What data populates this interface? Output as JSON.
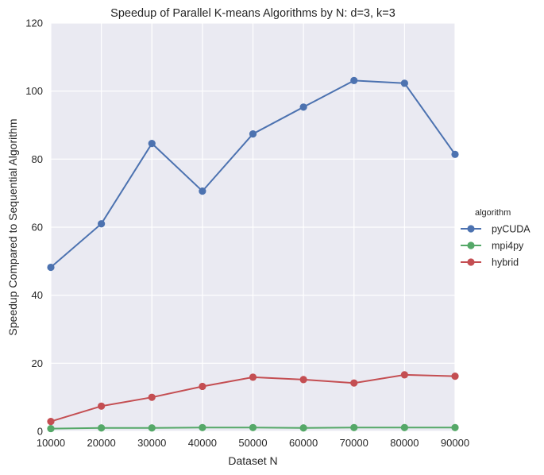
{
  "chart_data": {
    "type": "line",
    "title": "Speedup of Parallel K-means Algorithms by N: d=3, k=3",
    "xlabel": "Dataset N",
    "ylabel": "Speedup Compared to Sequential Algorithm",
    "x": [
      10000,
      20000,
      30000,
      40000,
      50000,
      60000,
      70000,
      80000,
      90000
    ],
    "x_tick_labels": [
      "10000",
      "20000",
      "30000",
      "40000",
      "50000",
      "60000",
      "70000",
      "80000",
      "90000"
    ],
    "y_ticks": [
      0,
      20,
      40,
      60,
      80,
      100,
      120
    ],
    "y_tick_labels": [
      "0",
      "20",
      "40",
      "60",
      "80",
      "100",
      "120"
    ],
    "xlim": [
      10000,
      90000
    ],
    "ylim": [
      0,
      120
    ],
    "grid": true,
    "legend_title": "algorithm",
    "legend_position": "right",
    "series": [
      {
        "name": "pyCUDA",
        "color": "#4c72b0",
        "values": [
          48.2,
          61.0,
          84.6,
          70.6,
          87.4,
          95.3,
          103.1,
          102.3,
          81.4
        ]
      },
      {
        "name": "mpi4py",
        "color": "#55a868",
        "values": [
          0.8,
          1.0,
          1.0,
          1.1,
          1.1,
          1.0,
          1.1,
          1.1,
          1.1
        ]
      },
      {
        "name": "hybrid",
        "color": "#c44e52",
        "values": [
          2.9,
          7.4,
          10.0,
          13.2,
          15.9,
          15.2,
          14.2,
          16.6,
          16.2
        ]
      }
    ]
  }
}
